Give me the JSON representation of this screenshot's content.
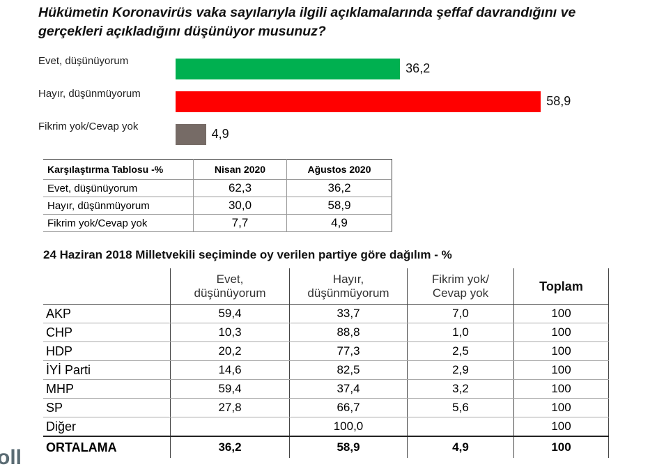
{
  "chart_data": {
    "type": "bar",
    "title": [
      "Hükümetin Koronavirüs vaka sayılarıyla ilgili açıklamalarında şeffaf davrandığını ve",
      "gerçekleri açıkladığını düşünüyor musunuz?"
    ],
    "categories": [
      "Evet, düşünüyorum",
      "Hayır, düşünmüyorum",
      "Fikrim yok/Cevap yok"
    ],
    "values": [
      36.2,
      58.9,
      4.9
    ],
    "value_labels": [
      "36,2",
      "58,9",
      "4,9"
    ],
    "colors": [
      "#00b050",
      "#ff0000",
      "#766b66"
    ]
  },
  "comparison_table": {
    "headers": [
      "Karşılaştırma Tablosu -%",
      "Nisan 2020",
      "Ağustos 2020"
    ],
    "rows": [
      [
        "Evet, düşünüyorum",
        "62,3",
        "36,2"
      ],
      [
        "Hayır, düşünmüyorum",
        "30,0",
        "58,9"
      ],
      [
        "Fikrim yok/Cevap yok",
        "7,7",
        "4,9"
      ]
    ]
  },
  "party_table": {
    "title": "24 Haziran 2018 Milletvekili seçiminde oy verilen partiye göre dağılım - %",
    "headers": [
      "Evet, düşünüyorum",
      "Hayır, düşünmüyorum",
      "Fikrim yok/ Cevap yok",
      "Toplam"
    ],
    "rows": [
      [
        "AKP",
        "59,4",
        "33,7",
        "7,0",
        "100"
      ],
      [
        "CHP",
        "10,3",
        "88,8",
        "1,0",
        "100"
      ],
      [
        "HDP",
        "20,2",
        "77,3",
        "2,5",
        "100"
      ],
      [
        "İYİ Parti",
        "14,6",
        "82,5",
        "2,9",
        "100"
      ],
      [
        "MHP",
        "59,4",
        "37,4",
        "3,2",
        "100"
      ],
      [
        "SP",
        "27,8",
        "66,7",
        "5,6",
        "100"
      ],
      [
        "Diğer",
        null,
        "100,0",
        null,
        "100"
      ]
    ],
    "total_row": [
      "ORTALAMA",
      "36,2",
      "58,9",
      "4,9",
      "100"
    ]
  },
  "logo": "oll"
}
